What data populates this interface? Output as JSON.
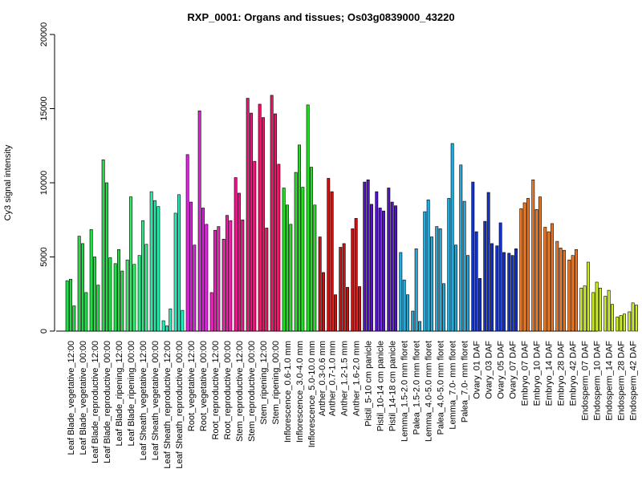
{
  "chart_data": {
    "type": "bar",
    "title": "RXP_0001: Organs and tissues; Os03g0839000_43220",
    "xlabel": "",
    "ylabel": "Cy3 signal intensity",
    "ylim": [
      0,
      20000
    ],
    "yticks": [
      "0",
      "5000",
      "10000",
      "15000",
      "20000"
    ],
    "grid": false,
    "groups": [
      {
        "color": "#22dd44",
        "values": [
          3400,
          3500,
          1700
        ]
      },
      {
        "color": "#22dd44",
        "values": [
          6400,
          5900,
          2600
        ]
      },
      {
        "color": "#22dd44",
        "values": [
          6850,
          5000,
          3100
        ]
      },
      {
        "color": "#22dd44",
        "values": [
          11550,
          10000,
          4950
        ]
      },
      {
        "color": "#22dd44",
        "values": [
          4550,
          5500,
          4050
        ]
      },
      {
        "color": "#33ee66",
        "values": [
          4800,
          9050,
          4500
        ]
      },
      {
        "color": "#33ee88",
        "values": [
          5100,
          7450,
          5850
        ]
      },
      {
        "color": "#22eeaa",
        "values": [
          9400,
          8800,
          8400
        ]
      },
      {
        "color": "#22eebb",
        "values": [
          700,
          350,
          1500
        ]
      },
      {
        "color": "#22eebb",
        "values": [
          7950,
          9200,
          1400
        ]
      },
      {
        "color": "#dd22dd",
        "values": [
          11900,
          8700,
          5800
        ]
      },
      {
        "color": "#dd22dd",
        "values": [
          14850,
          8300,
          7200
        ]
      },
      {
        "color": "#ee22bb",
        "values": [
          2600,
          6800,
          7050
        ]
      },
      {
        "color": "#ee22aa",
        "values": [
          6200,
          7800,
          7450
        ]
      },
      {
        "color": "#ee1188",
        "values": [
          10350,
          9300,
          7500
        ]
      },
      {
        "color": "#ee1177",
        "values": [
          15700,
          14700,
          11450
        ]
      },
      {
        "color": "#ee1166",
        "values": [
          15300,
          14400,
          6950
        ]
      },
      {
        "color": "#ee1166",
        "values": [
          15900,
          14650,
          11250
        ]
      },
      {
        "color": "#22dd22",
        "values": [
          9650,
          8500,
          7200
        ]
      },
      {
        "color": "#22dd22",
        "values": [
          10700,
          12550,
          9700
        ]
      },
      {
        "color": "#22dd22",
        "values": [
          15250,
          11050,
          8500
        ]
      },
      {
        "color": "#cc1111",
        "values": [
          6350,
          3950
        ]
      },
      {
        "color": "#cc1111",
        "values": [
          10300,
          9400,
          2450
        ]
      },
      {
        "color": "#cc1111",
        "values": [
          5650,
          5900,
          2950
        ]
      },
      {
        "color": "#cc1111",
        "values": [
          6900,
          7600,
          3000
        ]
      },
      {
        "color": "#5511cc",
        "values": [
          10050,
          10200,
          8550
        ]
      },
      {
        "color": "#5511cc",
        "values": [
          9400,
          8300,
          8100
        ]
      },
      {
        "color": "#5511cc",
        "values": [
          9650,
          8700,
          8450
        ]
      },
      {
        "color": "#22aadd",
        "values": [
          5300,
          3450,
          2450
        ]
      },
      {
        "color": "#22aadd",
        "values": [
          1350,
          5550,
          650
        ]
      },
      {
        "color": "#22aadd",
        "values": [
          8050,
          8850,
          6350
        ]
      },
      {
        "color": "#22aadd",
        "values": [
          7050,
          6900,
          3200
        ]
      },
      {
        "color": "#22aadd",
        "values": [
          8950,
          12650,
          5800
        ]
      },
      {
        "color": "#22aadd",
        "values": [
          11200,
          8750,
          5100
        ]
      },
      {
        "color": "#1133cc",
        "values": [
          10050,
          6700,
          3550
        ]
      },
      {
        "color": "#1133cc",
        "values": [
          7400,
          9350,
          5900
        ]
      },
      {
        "color": "#1133cc",
        "values": [
          5750,
          7300,
          5300
        ]
      },
      {
        "color": "#1133cc",
        "values": [
          5250,
          5100,
          5550
        ]
      },
      {
        "color": "#ee7722",
        "values": [
          8250,
          8650,
          8950
        ]
      },
      {
        "color": "#ee7722",
        "values": [
          10200,
          8200,
          9050
        ]
      },
      {
        "color": "#ee7722",
        "values": [
          7000,
          6700,
          7250
        ]
      },
      {
        "color": "#ee7722",
        "values": [
          6050,
          5600,
          5450
        ]
      },
      {
        "color": "#ee7722",
        "values": [
          4800,
          5100,
          5500
        ]
      },
      {
        "color": "#ccee22",
        "values": [
          2900,
          3050,
          4650
        ]
      },
      {
        "color": "#ccee22",
        "values": [
          2600,
          3300,
          2900
        ]
      },
      {
        "color": "#ccee22",
        "values": [
          2350,
          2750,
          1800
        ]
      },
      {
        "color": "#ccee22",
        "values": [
          950,
          1050,
          1150
        ]
      },
      {
        "color": "#ccee22",
        "values": [
          1300,
          1900,
          1750
        ]
      }
    ],
    "category_labels": [
      "Leaf Blade_vegetative_12:00",
      "Leaf Blade_vegetative_00:00",
      "Leaf Blade_reproductive_12:00",
      "Leaf Blade_reproductive_00:00",
      "Leaf Blade_ripening_12:00",
      "Leaf Blade_ripening_00:00",
      "Leaf Sheath_vegetative_12:00",
      "Leaf Sheath_vegetative_00:00",
      "Leaf Sheath_reproductive_12:00",
      "Leaf Sheath_reproductive_00:00",
      "Root_vegetative_12:00",
      "Root_vegetative_00:00",
      "Root_reproductive_12:00",
      "Root_reproductive_00:00",
      "Stem_reproductive_12:00",
      "Stem_reproductive_00:00",
      "Stem_ripening_12:00",
      "Stem_ripening_00:00",
      "Inflorescence_0.6-1.0 mm",
      "Inflorescence_3.0-4.0 mm",
      "Inflorescence_5.0-10.0 mm",
      "Anther_0.3-0.6 mm",
      "Anther_0.7-1.0 mm",
      "Anther_1.2-1.5 mm",
      "Anther_1.6-2.0 mm",
      "Pistil_5-10 cm panicle",
      "Pistil_10-14 cm panicle",
      "Pistil_14-18 cm panicle",
      "Lemma_1.5-2.0 mm floret",
      "Palea_1.5-2.0 mm floret",
      "Lemma_4.0-5.0 mm floret",
      "Palea_4.0-5.0 mm floret",
      "Lemma_7.0- mm floret",
      "Palea_7.0- mm floret",
      "Ovary_01 DAF",
      "Ovary_03 DAF",
      "Ovary_05 DAF",
      "Ovary_07 DAF",
      "Embryo_07 DAF",
      "Embryo_10 DAF",
      "Embryo_14 DAF",
      "Embryo_28 DAF",
      "Embryo_42 DAF",
      "Endosperm_07 DAF",
      "Endosperm_10 DAF",
      "Endosperm_14 DAF",
      "Endosperm_28 DAF",
      "Endosperm_42 DAF"
    ]
  }
}
